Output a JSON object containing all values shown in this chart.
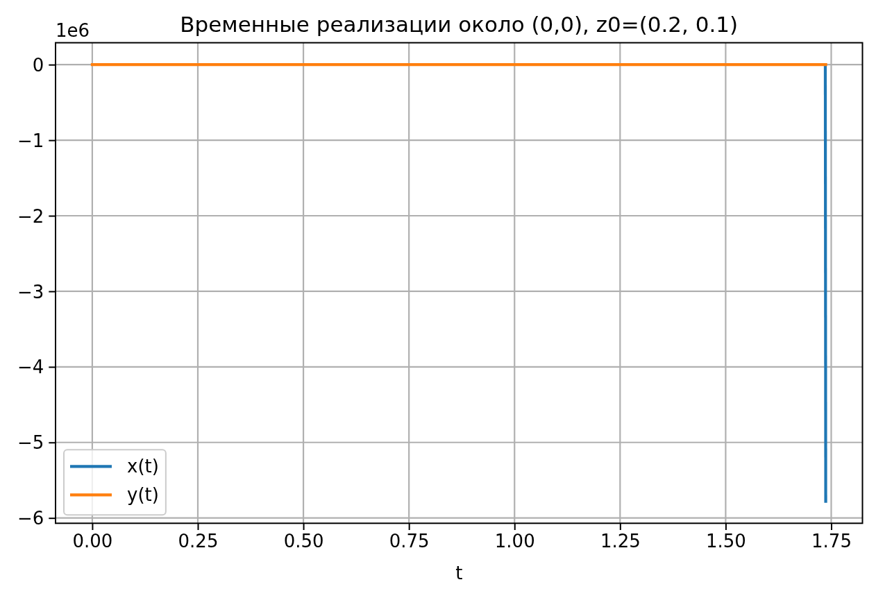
{
  "chart_data": {
    "type": "line",
    "title": "Временные реализации около (0,0), z0=(0.2, 0.1)",
    "xlabel": "t",
    "annotations": [
      "1e6"
    ],
    "x": [
      0,
      1.736,
      1.737
    ],
    "series": [
      {
        "name": "x(t)",
        "color": "#1f77b4",
        "values": [
          null,
          0,
          -5.78
        ]
      },
      {
        "name": "y(t)",
        "color": "#ff7f0e",
        "values": [
          0,
          0,
          0
        ]
      }
    ],
    "xlim": [
      -0.087,
      1.824
    ],
    "ylim": [
      -6.07,
      0.29
    ],
    "xticks": [
      {
        "value": 0,
        "label": "0.00"
      },
      {
        "value": 0.25,
        "label": "0.25"
      },
      {
        "value": 0.5,
        "label": "0.50"
      },
      {
        "value": 0.75,
        "label": "0.75"
      },
      {
        "value": 1,
        "label": "1.00"
      },
      {
        "value": 1.25,
        "label": "1.25"
      },
      {
        "value": 1.5,
        "label": "1.50"
      },
      {
        "value": 1.75,
        "label": "1.75"
      }
    ],
    "yticks": [
      {
        "value": -6,
        "label": "−6"
      },
      {
        "value": -5,
        "label": "−5"
      },
      {
        "value": -4,
        "label": "−4"
      },
      {
        "value": -3,
        "label": "−3"
      },
      {
        "value": -2,
        "label": "−2"
      },
      {
        "value": -1,
        "label": "−1"
      },
      0
    ],
    "grid": true,
    "legend": "bottom left"
  }
}
